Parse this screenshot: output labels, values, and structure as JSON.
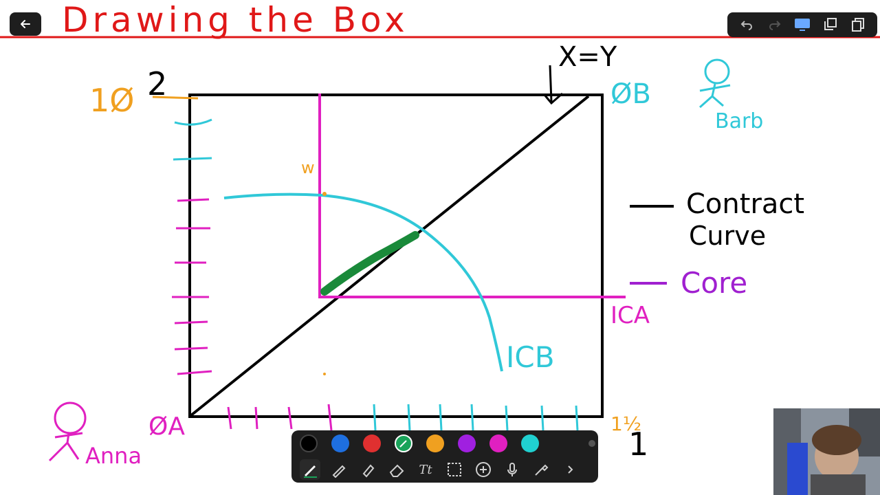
{
  "title": "Drawing the Box",
  "axis_labels": {
    "top_left_value": "2",
    "top_left_prefix": "1Ø",
    "bottom_right_value": "1",
    "bottom_right_prefix": "1½",
    "origin_a": "ØA",
    "origin_b": "ØB",
    "line_label": "X=Y"
  },
  "people": {
    "anna": "Anna",
    "barb": "Barb"
  },
  "curve_labels": {
    "ica": "ICA",
    "icb": "ICB"
  },
  "legend": {
    "contract_curve_line1": "Contract",
    "contract_curve_line2": "Curve",
    "core": "Core"
  },
  "toolbar": {
    "colors": [
      "#000000",
      "#1e6fe0",
      "#e03030",
      "#1aa35a",
      "#f0a020",
      "#a020e0",
      "#e020c0",
      "#20d0d0"
    ],
    "selected_color_index": 3,
    "tools": [
      "pen",
      "pencil",
      "highlighter",
      "eraser",
      "text",
      "selection",
      "add",
      "microphone",
      "eyedropper",
      "more"
    ],
    "text_tool_label": "Tt"
  },
  "colors": {
    "title": "#e01818",
    "axis": "#000000",
    "cyan": "#30c8d8",
    "magenta": "#e020c0",
    "orange": "#f0a020",
    "green": "#1a8a3a",
    "purple": "#a020d0"
  }
}
